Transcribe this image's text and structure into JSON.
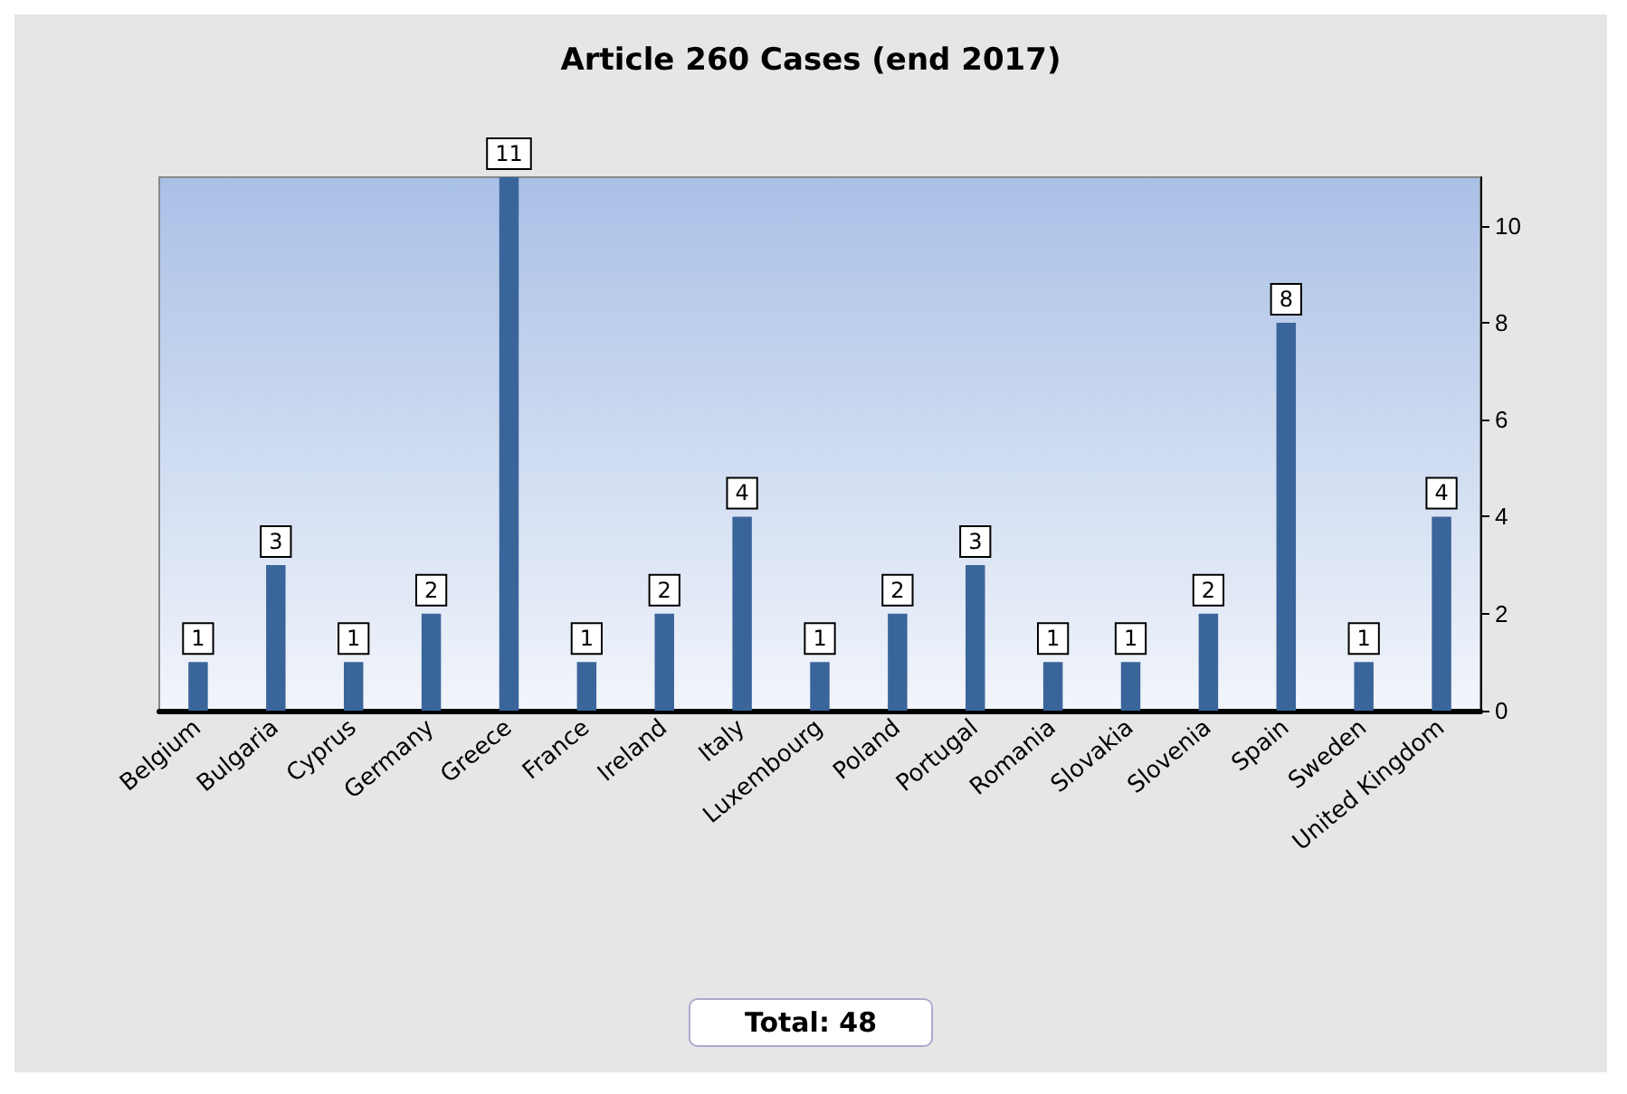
{
  "chart_data": {
    "type": "bar",
    "title": "Article 260 Cases (end 2017)",
    "categories": [
      "Belgium",
      "Bulgaria",
      "Cyprus",
      "Germany",
      "Greece",
      "France",
      "Ireland",
      "Italy",
      "Luxembourg",
      "Poland",
      "Portugal",
      "Romania",
      "Slovakia",
      "Slovenia",
      "Spain",
      "Sweden",
      "United Kingdom"
    ],
    "values": [
      1,
      3,
      1,
      2,
      11,
      1,
      2,
      4,
      1,
      2,
      3,
      1,
      1,
      2,
      8,
      1,
      4
    ],
    "color": "#3a659a",
    "ylim": [
      0,
      11
    ],
    "yticks": [
      0,
      2,
      4,
      6,
      8,
      10
    ],
    "grid": false,
    "data_labels": true,
    "annotations": [
      "Total: 48"
    ]
  }
}
